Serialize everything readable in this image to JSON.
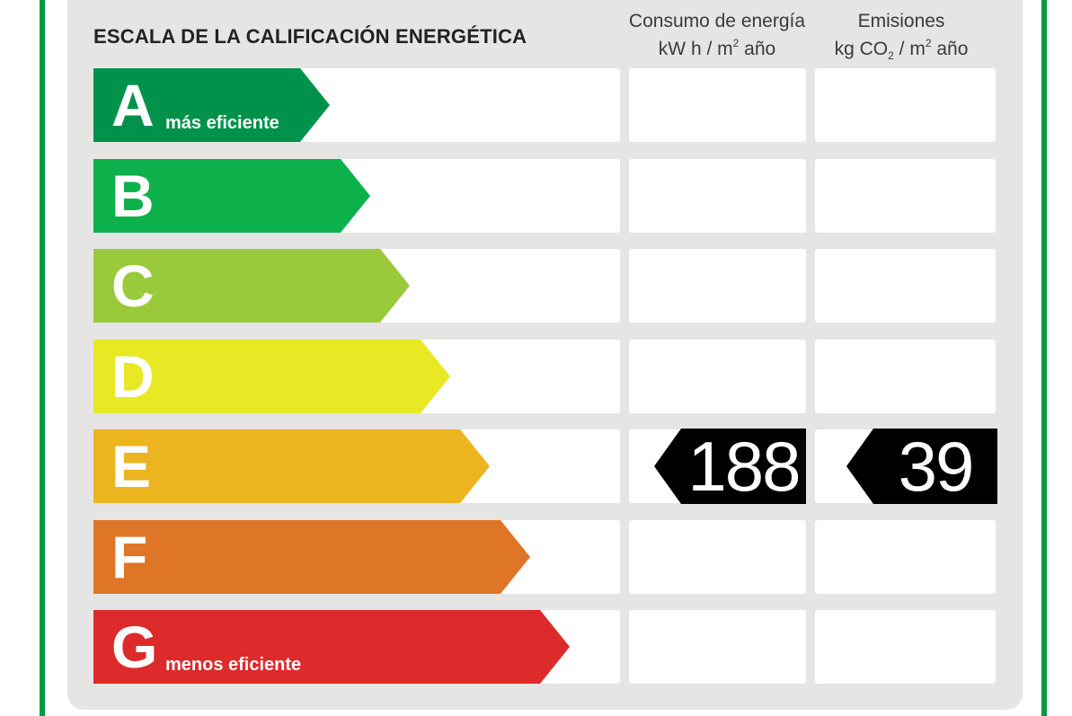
{
  "title": "ESCALA DE LA CALIFICACIÓN ENERGÉTICA",
  "columns": {
    "energy": {
      "line1": "Consumo de energía",
      "line2_pre": "kW h  / m",
      "line2_sup": "2",
      "line2_post": " año"
    },
    "emissions": {
      "line1": "Emisiones",
      "line2_pre": "kg CO",
      "line2_sub": "2",
      "line2_mid": "  / m",
      "line2_sup": "2",
      "line2_post": " año"
    }
  },
  "frame_color": "#009a44",
  "ratings": [
    {
      "letter": "A",
      "description": "más eficiente",
      "color": "#00924a"
    },
    {
      "letter": "B",
      "description": "",
      "color": "#0db14b"
    },
    {
      "letter": "C",
      "description": "",
      "color": "#9bc93c"
    },
    {
      "letter": "D",
      "description": "",
      "color": "#e8e824"
    },
    {
      "letter": "E",
      "description": "",
      "color": "#ecb41f"
    },
    {
      "letter": "F",
      "description": "",
      "color": "#df7527"
    },
    {
      "letter": "G",
      "description": "menos eficiente",
      "color": "#dd2a2a"
    }
  ],
  "current": {
    "rating": "E",
    "energy_value": "188",
    "emissions_value": "39",
    "indicator_color": "#000000"
  }
}
